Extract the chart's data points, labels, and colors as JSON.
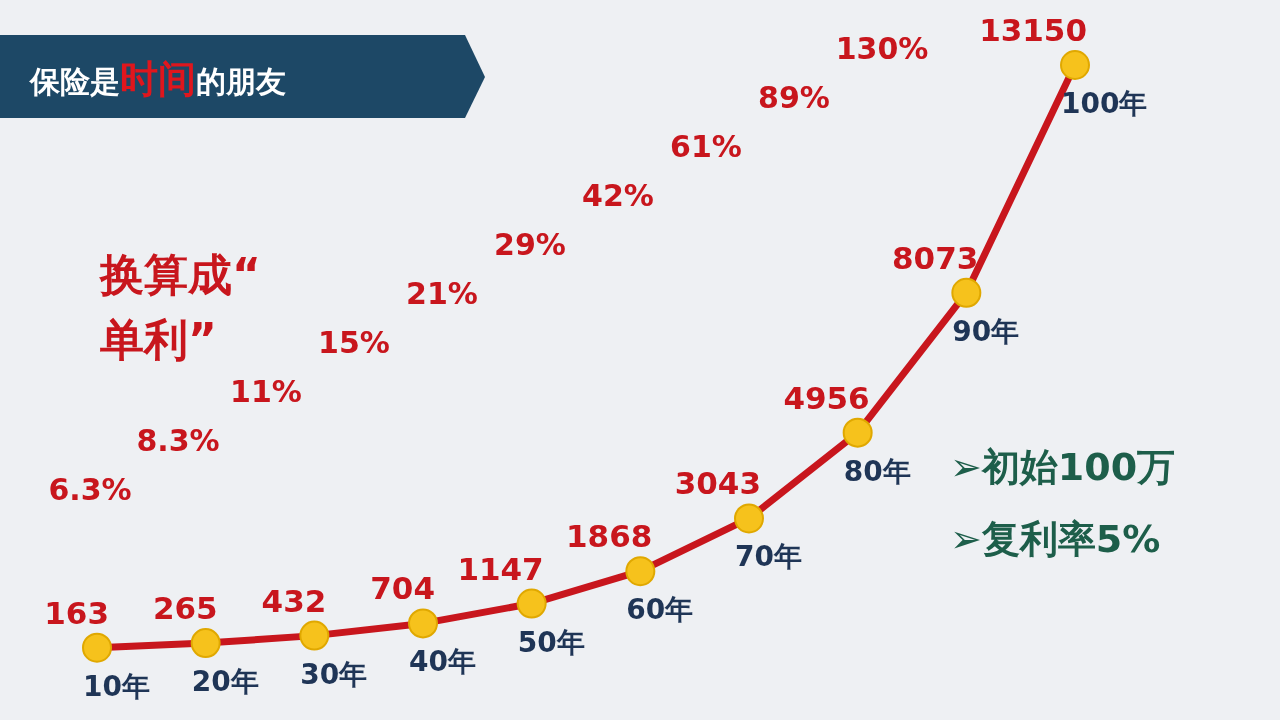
{
  "chart_data": {
    "type": "line",
    "title": "保险是**时间**的朋友",
    "subtitle": "换算成“单利”",
    "categories": [
      "10年",
      "20年",
      "30年",
      "40年",
      "50年",
      "60年",
      "70年",
      "80年",
      "90年",
      "100年"
    ],
    "values": [
      163,
      265,
      432,
      704,
      1147,
      1868,
      3043,
      4956,
      8073,
      13150
    ],
    "color": "#c8161d",
    "marker": "circle",
    "data_labels": true,
    "annotations": [
      "6.3%",
      "8.3%",
      "11%",
      "15%",
      "21%",
      "29%",
      "42%",
      "61%",
      "89%",
      "130%",
      "➢初始100万",
      "➢复利率5%"
    ]
  }
}
